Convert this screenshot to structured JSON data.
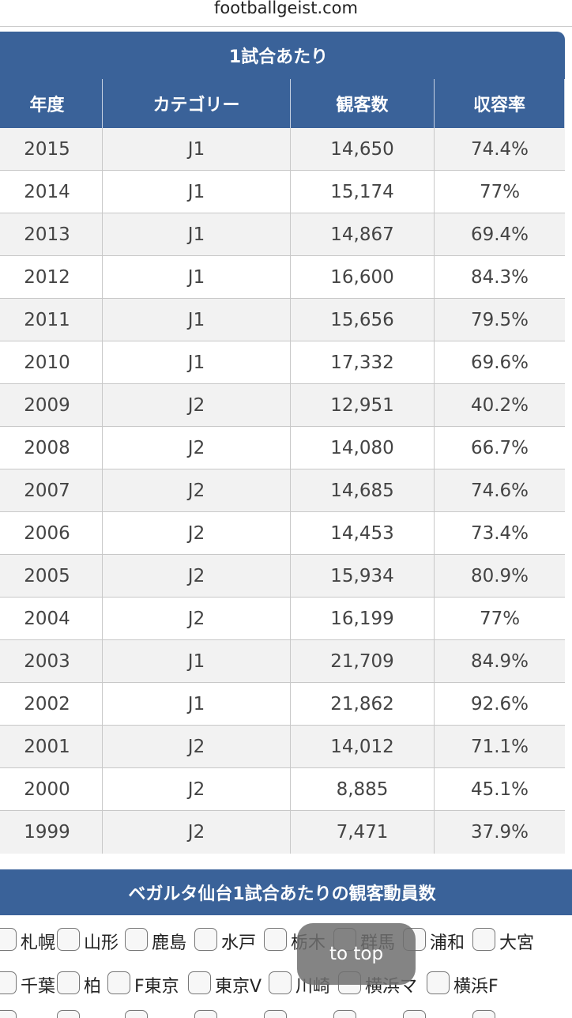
{
  "url": "footballgeist.com",
  "table": {
    "caption": "1試合あたり",
    "headers": [
      "年度",
      "カテゴリー",
      "観客数",
      "収容率"
    ],
    "rows": [
      [
        "2015",
        "J1",
        "14,650",
        "74.4%"
      ],
      [
        "2014",
        "J1",
        "15,174",
        "77%"
      ],
      [
        "2013",
        "J1",
        "14,867",
        "69.4%"
      ],
      [
        "2012",
        "J1",
        "16,600",
        "84.3%"
      ],
      [
        "2011",
        "J1",
        "15,656",
        "79.5%"
      ],
      [
        "2010",
        "J1",
        "17,332",
        "69.6%"
      ],
      [
        "2009",
        "J2",
        "12,951",
        "40.2%"
      ],
      [
        "2008",
        "J2",
        "14,080",
        "66.7%"
      ],
      [
        "2007",
        "J2",
        "14,685",
        "74.6%"
      ],
      [
        "2006",
        "J2",
        "14,453",
        "73.4%"
      ],
      [
        "2005",
        "J2",
        "15,934",
        "80.9%"
      ],
      [
        "2004",
        "J2",
        "16,199",
        "77%"
      ],
      [
        "2003",
        "J1",
        "21,709",
        "84.9%"
      ],
      [
        "2002",
        "J1",
        "21,862",
        "92.6%"
      ],
      [
        "2001",
        "J2",
        "14,012",
        "71.1%"
      ],
      [
        "2000",
        "J2",
        "8,885",
        "45.1%"
      ],
      [
        "1999",
        "J2",
        "7,471",
        "37.9%"
      ]
    ]
  },
  "section": {
    "title": "ベガルタ仙台1試合あたりの観客動員数",
    "teams": [
      [
        "札幌",
        "山形",
        "鹿島",
        "水戸",
        "栃木",
        "群馬",
        "浦和",
        "大宮"
      ],
      [
        "千葉",
        "柏",
        "F東京",
        "東京V",
        "川崎",
        "横浜マ",
        "横浜F"
      ]
    ]
  },
  "button": "to top"
}
